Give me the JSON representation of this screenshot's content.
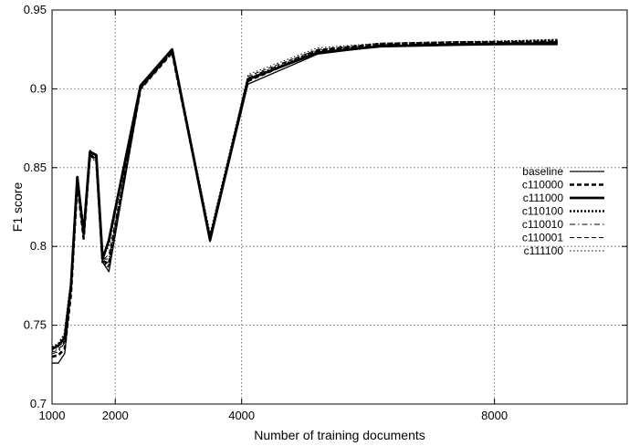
{
  "chart_data": {
    "type": "line",
    "title": "",
    "xlabel": "Number of training documents",
    "ylabel": "F1 score",
    "xlim": [
      1000,
      10100
    ],
    "ylim": [
      0.7,
      0.95
    ],
    "xticks": [
      1000,
      2000,
      4000,
      8000
    ],
    "xtick_labels": [
      "1000",
      "2000",
      "4000",
      "8000"
    ],
    "yticks": [
      0.7,
      0.75,
      0.8,
      0.85,
      0.9,
      0.95
    ],
    "ytick_labels": [
      "0.7",
      "0.75",
      "0.8",
      "0.85",
      "0.9",
      "0.95"
    ],
    "grid": true,
    "legend_position": "right",
    "x": [
      1000,
      1100,
      1200,
      1300,
      1400,
      1500,
      1600,
      1700,
      1800,
      1900,
      2400,
      2900,
      3500,
      4100,
      5200,
      6200,
      7400,
      9000
    ],
    "series": [
      {
        "name": "baseline",
        "style": "solid",
        "width": 1.3,
        "values": [
          0.726,
          0.726,
          0.732,
          0.772,
          0.842,
          0.806,
          0.861,
          0.857,
          0.79,
          0.784,
          0.9,
          0.925,
          0.803,
          0.903,
          0.922,
          0.927,
          0.928,
          0.928
        ]
      },
      {
        "name": "c110000",
        "style": "dashed-bold",
        "width": 2.6,
        "values": [
          0.73,
          0.731,
          0.735,
          0.77,
          0.84,
          0.805,
          0.858,
          0.855,
          0.791,
          0.789,
          0.9,
          0.923,
          0.805,
          0.905,
          0.924,
          0.928,
          0.929,
          0.93
        ]
      },
      {
        "name": "c111000",
        "style": "solid-bold",
        "width": 2.8,
        "values": [
          0.735,
          0.737,
          0.742,
          0.775,
          0.844,
          0.808,
          0.86,
          0.858,
          0.792,
          0.804,
          0.902,
          0.925,
          0.804,
          0.906,
          0.923,
          0.927,
          0.928,
          0.929
        ]
      },
      {
        "name": "c110100",
        "style": "dotted-bold",
        "width": 2.6,
        "values": [
          0.736,
          0.738,
          0.744,
          0.776,
          0.843,
          0.809,
          0.859,
          0.857,
          0.79,
          0.787,
          0.901,
          0.924,
          0.806,
          0.906,
          0.924,
          0.928,
          0.929,
          0.931
        ]
      },
      {
        "name": "c110010",
        "style": "dashdot",
        "width": 1.0,
        "values": [
          0.732,
          0.733,
          0.739,
          0.773,
          0.841,
          0.807,
          0.857,
          0.855,
          0.792,
          0.792,
          0.899,
          0.924,
          0.807,
          0.907,
          0.925,
          0.928,
          0.929,
          0.93
        ]
      },
      {
        "name": "c110001",
        "style": "dashed",
        "width": 1.0,
        "values": [
          0.733,
          0.734,
          0.74,
          0.774,
          0.842,
          0.806,
          0.858,
          0.856,
          0.791,
          0.795,
          0.9,
          0.923,
          0.806,
          0.908,
          0.925,
          0.929,
          0.93,
          0.93
        ]
      },
      {
        "name": "c111100",
        "style": "dotted",
        "width": 1.0,
        "values": [
          0.734,
          0.735,
          0.741,
          0.775,
          0.843,
          0.807,
          0.856,
          0.854,
          0.793,
          0.8,
          0.901,
          0.924,
          0.808,
          0.909,
          0.926,
          0.929,
          0.93,
          0.931
        ]
      }
    ]
  }
}
